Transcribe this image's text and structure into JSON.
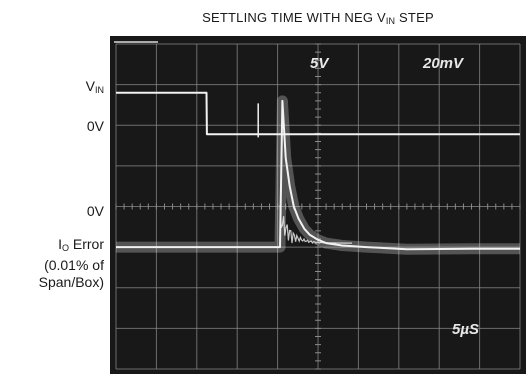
{
  "title": {
    "main": "SETTLING TIME WITH NEG V",
    "sub": "IN",
    "tail": " STEP"
  },
  "labels": {
    "vin_main": "V",
    "vin_sub": "IN",
    "zero_top": "0V",
    "zero_bottom": "0V",
    "error_main": "I",
    "error_sub": "O",
    "error_tail": " Error",
    "error_line2": "(0.01% of",
    "error_line3": "Span/Box)"
  },
  "screen": {
    "ch1_scale": "5V",
    "ch2_scale": "20mV",
    "timebase": "5µS",
    "background": "#181818",
    "grid_color": "#8a8a8a",
    "trace_color": "#f2f2f2"
  },
  "chart_data": {
    "type": "line",
    "title": "SETTLING TIME WITH NEG VIN STEP",
    "grid": true,
    "divisions": {
      "x": 10,
      "y": 8
    },
    "x_unit": "µs",
    "x_per_div": 5,
    "xlim": [
      0,
      50
    ],
    "series": [
      {
        "name": "VIN",
        "volts_per_div": 5,
        "x": [
          0,
          2.5,
          11.2,
          11.25,
          50
        ],
        "y": [
          5,
          5,
          5,
          -0.1,
          -0.1
        ],
        "baseline_div": 5.8
      },
      {
        "name": "IO Error",
        "scale_per_div": "0.01% of span",
        "x": [
          0,
          5.5,
          6.0,
          20.3,
          20.6,
          21.0,
          21.5,
          22.0,
          22.6,
          23.3,
          24.0,
          25.0,
          26.0,
          28.0,
          31.0,
          36.0,
          44.0,
          50.0
        ],
        "y": [
          0,
          0,
          0,
          0,
          3.6,
          2.2,
          1.5,
          1.0,
          0.7,
          0.45,
          0.3,
          0.18,
          0.1,
          0.04,
          0.0,
          -0.05,
          -0.04,
          -0.04
        ],
        "baseline_div": 3.0
      }
    ]
  }
}
